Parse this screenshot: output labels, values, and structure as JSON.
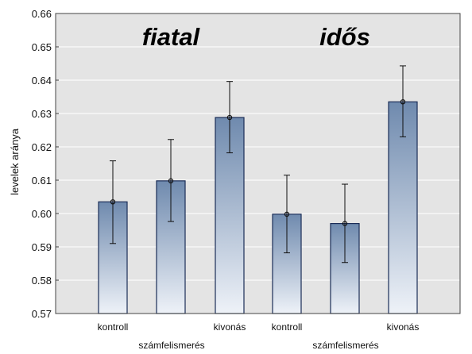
{
  "chart_data": {
    "type": "bar",
    "ylabel": "levelek aránya",
    "ylim": [
      0.57,
      0.66
    ],
    "yticks": [
      "0.57",
      "0.58",
      "0.59",
      "0.60",
      "0.61",
      "0.62",
      "0.63",
      "0.64",
      "0.65",
      "0.66"
    ],
    "grid": true,
    "groups": [
      {
        "title": "fiatal",
        "bars": [
          {
            "category": "kontroll",
            "value": 0.6035,
            "ci_low": 0.591,
            "ci_high": 0.6158
          },
          {
            "category": "számfelismerés",
            "value": 0.6098,
            "ci_low": 0.5976,
            "ci_high": 0.6222
          },
          {
            "category": "kivonás",
            "value": 0.6288,
            "ci_low": 0.6182,
            "ci_high": 0.6396
          }
        ]
      },
      {
        "title": "idős",
        "bars": [
          {
            "category": "kontroll",
            "value": 0.5998,
            "ci_low": 0.5882,
            "ci_high": 0.6115
          },
          {
            "category": "számfelismerés",
            "value": 0.597,
            "ci_low": 0.5853,
            "ci_high": 0.6088
          },
          {
            "category": "kivonás",
            "value": 0.6335,
            "ci_low": 0.623,
            "ci_high": 0.6443
          }
        ]
      }
    ],
    "colors": {
      "bar_top": "#6f8aae",
      "bar_bottom": "#eef2f8",
      "bar_edge": "#1b2d57",
      "plot_bg": "#e4e4e4",
      "grid": "#ffffff"
    }
  }
}
